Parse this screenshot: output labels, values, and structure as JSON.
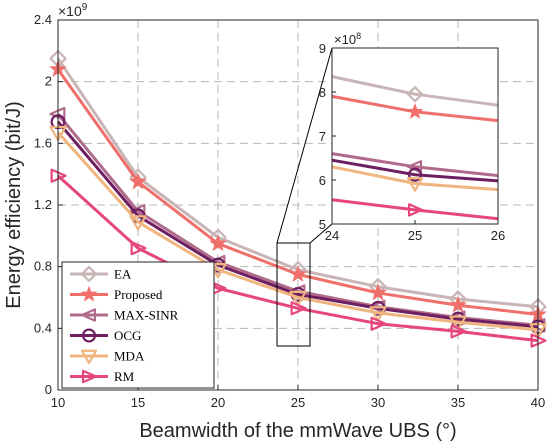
{
  "chart_data": [
    {
      "type": "line",
      "x": [
        10,
        15,
        20,
        25,
        30,
        35,
        40
      ],
      "xlabel": "Beamwidth of the mmWave UBS (°)",
      "ylabel": "Energy efficiency (bit/J)",
      "xlim": [
        10,
        40
      ],
      "ylim": [
        0,
        2.4
      ],
      "y_multiplier": "×10",
      "y_multiplier_exp": "9",
      "xticks": [
        "10",
        "15",
        "20",
        "25",
        "30",
        "35",
        "40"
      ],
      "yticks": [
        "0",
        "0.4",
        "0.8",
        "1.2",
        "1.6",
        "2",
        "2.4"
      ],
      "grid": true,
      "legend_position": "bottom-left",
      "series": [
        {
          "name": "EA",
          "color": "#c9b4b6",
          "marker": "diamond",
          "values": [
            2.15,
            1.38,
            0.99,
            0.78,
            0.67,
            0.59,
            0.54
          ]
        },
        {
          "name": "Proposed",
          "color": "#ef6f6a",
          "marker": "star",
          "values": [
            2.08,
            1.35,
            0.95,
            0.75,
            0.63,
            0.55,
            0.49
          ]
        },
        {
          "name": "MAX-SINR",
          "color": "#b06a8b",
          "marker": "triangle-left",
          "values": [
            1.79,
            1.16,
            0.83,
            0.64,
            0.54,
            0.47,
            0.42
          ]
        },
        {
          "name": "OCG",
          "color": "#6d1f62",
          "marker": "circle",
          "values": [
            1.74,
            1.13,
            0.81,
            0.62,
            0.53,
            0.46,
            0.41
          ]
        },
        {
          "name": "MDA",
          "color": "#f0b57f",
          "marker": "triangle-down",
          "values": [
            1.67,
            1.09,
            0.78,
            0.6,
            0.5,
            0.44,
            0.39
          ]
        },
        {
          "name": "RM",
          "color": "#e7457d",
          "marker": "triangle-right",
          "values": [
            1.39,
            0.92,
            0.66,
            0.53,
            0.43,
            0.38,
            0.32
          ]
        }
      ]
    },
    {
      "type": "line",
      "role": "inset",
      "x": [
        24,
        25,
        26
      ],
      "xlim": [
        24,
        26
      ],
      "ylim": [
        5,
        9
      ],
      "xticks": [
        "24",
        "25",
        "26"
      ],
      "yticks": [
        "5",
        "6",
        "7",
        "8",
        "9"
      ],
      "y_multiplier": "×10",
      "y_multiplier_exp": "8",
      "grid": false,
      "series": [
        {
          "name": "EA",
          "color": "#c9b4b6",
          "marker": "diamond",
          "values": [
            8.35,
            7.95,
            7.7
          ]
        },
        {
          "name": "Proposed",
          "color": "#ef6f6a",
          "marker": "star",
          "values": [
            7.9,
            7.55,
            7.35
          ]
        },
        {
          "name": "MAX-SINR",
          "color": "#b06a8b",
          "marker": "triangle-left",
          "values": [
            6.6,
            6.3,
            6.1
          ]
        },
        {
          "name": "OCG",
          "color": "#6d1f62",
          "marker": "circle",
          "values": [
            6.45,
            6.12,
            5.98
          ]
        },
        {
          "name": "MDA",
          "color": "#f0b57f",
          "marker": "triangle-down",
          "values": [
            6.3,
            5.92,
            5.78
          ]
        },
        {
          "name": "RM",
          "color": "#e7457d",
          "marker": "triangle-right",
          "values": [
            5.55,
            5.32,
            5.12
          ]
        }
      ]
    }
  ]
}
